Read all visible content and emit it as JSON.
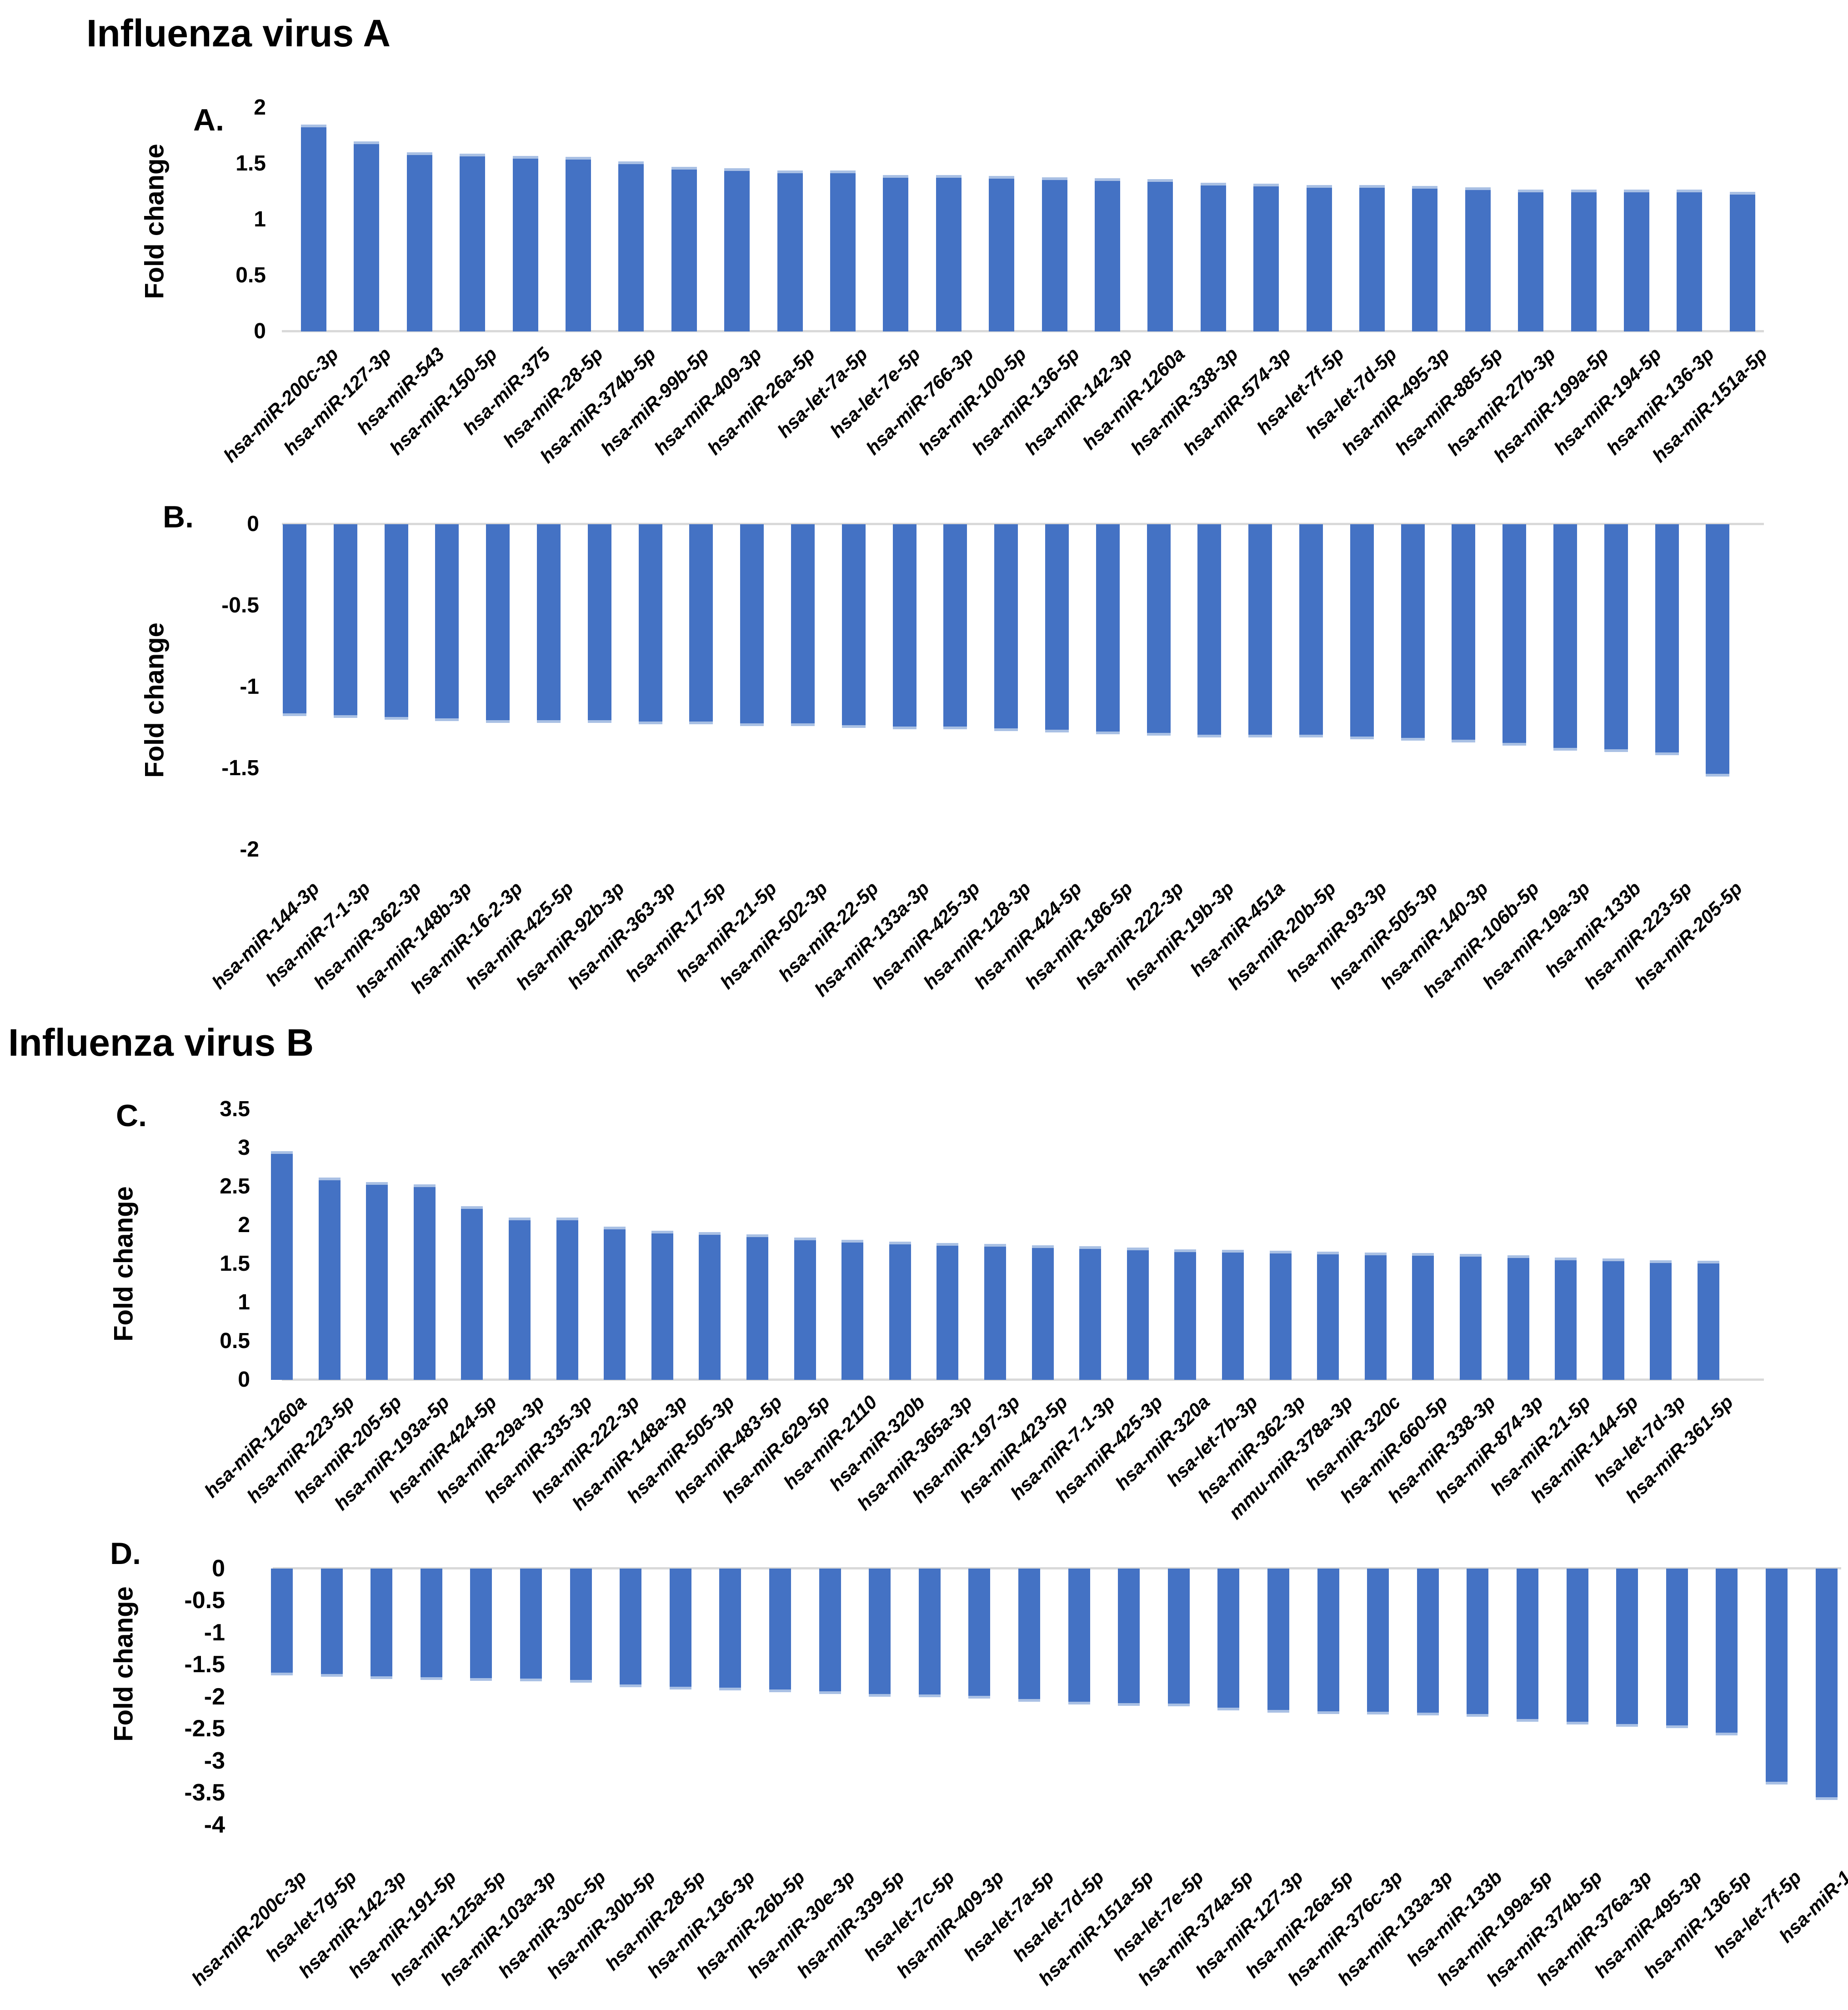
{
  "sections": [
    {
      "title": "Influenza virus A"
    },
    {
      "title": "Influenza virus B"
    }
  ],
  "style": {
    "bar_color": "#4472C4",
    "bar_cap_color": "#A9C0E4",
    "axis_line_color": "#D9D9D9",
    "text_color": "#000000"
  },
  "chart_data": [
    {
      "id": "A",
      "type": "bar",
      "panel_label": "A.",
      "section_title": "Influenza virus A",
      "ylabel": "Fold change",
      "ylim": [
        0,
        2
      ],
      "grid": false,
      "legend": null,
      "yticks": [
        "2",
        "1.5",
        "1",
        "0.5",
        "0"
      ],
      "categories": [
        "hsa-miR-200c-3p",
        "hsa-miR-127-3p",
        "hsa-miR-543",
        "hsa-miR-150-5p",
        "hsa-miR-375",
        "hsa-miR-28-5p",
        "hsa-miR-374b-5p",
        "hsa-miR-99b-5p",
        "hsa-miR-409-3p",
        "hsa-miR-26a-5p",
        "hsa-let-7a-5p",
        "hsa-let-7e-5p",
        "hsa-miR-766-3p",
        "hsa-miR-100-5p",
        "hsa-miR-136-5p",
        "hsa-miR-142-3p",
        "hsa-miR-1260a",
        "hsa-miR-338-3p",
        "hsa-miR-574-3p",
        "hsa-let-7f-5p",
        "hsa-let-7d-5p",
        "hsa-miR-495-3p",
        "hsa-miR-885-5p",
        "hsa-miR-27b-3p",
        "hsa-miR-199a-5p",
        "hsa-miR-194-5p",
        "hsa-miR-136-3p",
        "hsa-miR-151a-5p"
      ],
      "values": [
        1.85,
        1.7,
        1.6,
        1.59,
        1.57,
        1.56,
        1.52,
        1.47,
        1.46,
        1.44,
        1.44,
        1.4,
        1.4,
        1.39,
        1.38,
        1.37,
        1.36,
        1.33,
        1.32,
        1.31,
        1.31,
        1.3,
        1.29,
        1.27,
        1.27,
        1.27,
        1.27,
        1.25
      ]
    },
    {
      "id": "B",
      "type": "bar",
      "panel_label": "B.",
      "ylabel": "Fold change",
      "ylim": [
        -2,
        0
      ],
      "grid": false,
      "legend": null,
      "yticks": [
        "0",
        "-0.5",
        "-1",
        "-1.5",
        "-2"
      ],
      "categories": [
        "hsa-miR-144-3p",
        "hsa-miR-7-1-3p",
        "hsa-miR-362-3p",
        "hsa-miR-148b-3p",
        "hsa-miR-16-2-3p",
        "hsa-miR-425-5p",
        "hsa-miR-92b-3p",
        "hsa-miR-363-3p",
        "hsa-miR-17-5p",
        "hsa-miR-21-5p",
        "hsa-miR-502-3p",
        "hsa-miR-22-5p",
        "hsa-miR-133a-3p",
        "hsa-miR-425-3p",
        "hsa-miR-128-3p",
        "hsa-miR-424-5p",
        "hsa-miR-186-5p",
        "hsa-miR-222-3p",
        "hsa-miR-19b-3p",
        "hsa-miR-451a",
        "hsa-miR-20b-5p",
        "hsa-miR-93-3p",
        "hsa-miR-505-3p",
        "hsa-miR-140-3p",
        "hsa-miR-106b-5p",
        "hsa-miR-19a-3p",
        "hsa-miR-133b",
        "hsa-miR-223-5p",
        "hsa-miR-205-5p"
      ],
      "values": [
        -1.18,
        -1.19,
        -1.2,
        -1.21,
        -1.22,
        -1.22,
        -1.22,
        -1.23,
        -1.23,
        -1.24,
        -1.24,
        -1.25,
        -1.26,
        -1.26,
        -1.27,
        -1.28,
        -1.29,
        -1.3,
        -1.31,
        -1.31,
        -1.31,
        -1.32,
        -1.33,
        -1.34,
        -1.36,
        -1.39,
        -1.4,
        -1.42,
        -1.55
      ]
    },
    {
      "id": "C",
      "type": "bar",
      "panel_label": "C.",
      "section_title": "Influenza virus B",
      "ylabel": "Fold change",
      "ylim": [
        0,
        3.5
      ],
      "grid": false,
      "legend": null,
      "yticks": [
        "3.5",
        "3",
        "2.5",
        "2",
        "1.5",
        "1",
        "0.5",
        "0"
      ],
      "categories": [
        "hsa-miR-1260a",
        "hsa-miR-223-5p",
        "hsa-miR-205-5p",
        "hsa-miR-193a-5p",
        "hsa-miR-424-5p",
        "hsa-miR-29a-3p",
        "hsa-miR-335-3p",
        "hsa-miR-222-3p",
        "hsa-miR-148a-3p",
        "hsa-miR-505-3p",
        "hsa-miR-483-5p",
        "hsa-miR-629-5p",
        "hsa-miR-2110",
        "hsa-miR-320b",
        "hsa-miR-365a-3p",
        "hsa-miR-197-3p",
        "hsa-miR-423-5p",
        "hsa-miR-7-1-3p",
        "hsa-miR-425-3p",
        "hsa-miR-320a",
        "hsa-let-7b-3p",
        "hsa-miR-362-3p",
        "mmu-miR-378a-3p",
        "hsa-miR-320c",
        "hsa-miR-660-5p",
        "hsa-miR-338-3p",
        "hsa-miR-874-3p",
        "hsa-miR-21-5p",
        "hsa-miR-144-5p",
        "hsa-let-7d-3p",
        "hsa-miR-361-5p"
      ],
      "values": [
        2.96,
        2.62,
        2.56,
        2.53,
        2.25,
        2.1,
        2.1,
        1.98,
        1.93,
        1.91,
        1.88,
        1.84,
        1.81,
        1.79,
        1.77,
        1.76,
        1.74,
        1.73,
        1.71,
        1.69,
        1.68,
        1.67,
        1.66,
        1.65,
        1.64,
        1.63,
        1.61,
        1.58,
        1.57,
        1.55,
        1.54
      ]
    },
    {
      "id": "D",
      "type": "bar",
      "panel_label": "D.",
      "ylabel": "Fold change",
      "ylim": [
        -4,
        0
      ],
      "grid": false,
      "legend": null,
      "yticks": [
        "0",
        "-0.5",
        "-1",
        "-1.5",
        "-2",
        "-2.5",
        "-3",
        "-3.5",
        "-4"
      ],
      "categories": [
        "hsa-miR-200c-3p",
        "hsa-let-7g-5p",
        "hsa-miR-142-3p",
        "hsa-miR-191-5p",
        "hsa-miR-125a-5p",
        "hsa-miR-103a-3p",
        "hsa-miR-30c-5p",
        "hsa-miR-30b-5p",
        "hsa-miR-28-5p",
        "hsa-miR-136-3p",
        "hsa-miR-26b-5p",
        "hsa-miR-30e-3p",
        "hsa-miR-339-5p",
        "hsa-let-7c-5p",
        "hsa-miR-409-3p",
        "hsa-let-7a-5p",
        "hsa-let-7d-5p",
        "hsa-miR-151a-5p",
        "hsa-let-7e-5p",
        "hsa-miR-374a-5p",
        "hsa-miR-127-3p",
        "hsa-miR-26a-5p",
        "hsa-miR-376c-3p",
        "hsa-miR-133a-3p",
        "hsa-miR-133b",
        "hsa-miR-199a-5p",
        "hsa-miR-374b-5p",
        "hsa-miR-376a-3p",
        "hsa-miR-495-3p",
        "hsa-miR-136-5p",
        "hsa-let-7f-5p",
        "hsa-miR-1"
      ],
      "values": [
        -1.67,
        -1.69,
        -1.72,
        -1.74,
        -1.75,
        -1.76,
        -1.78,
        -1.85,
        -1.89,
        -1.9,
        -1.93,
        -1.96,
        -2.0,
        -2.01,
        -2.03,
        -2.08,
        -2.12,
        -2.14,
        -2.15,
        -2.21,
        -2.25,
        -2.27,
        -2.28,
        -2.29,
        -2.31,
        -2.39,
        -2.43,
        -2.47,
        -2.49,
        -2.6,
        -3.37,
        -3.61
      ]
    }
  ]
}
